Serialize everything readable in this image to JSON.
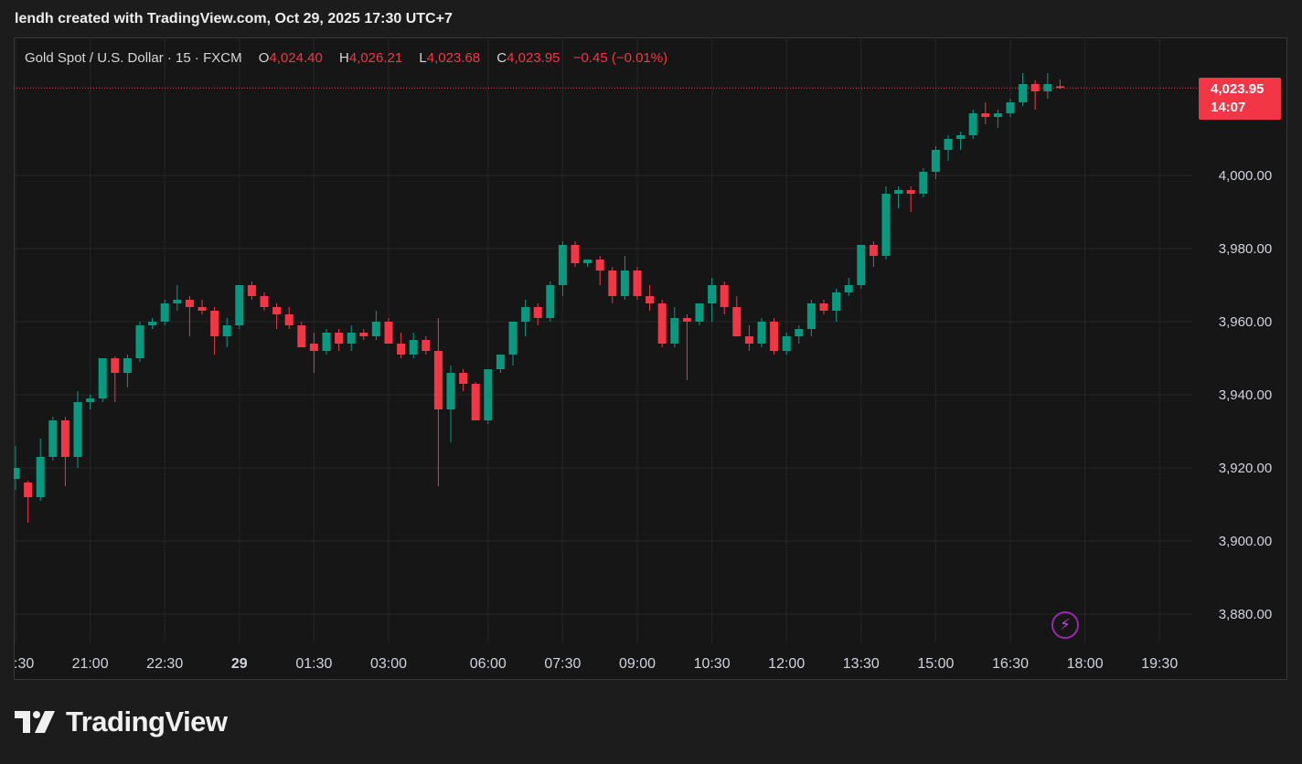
{
  "header": {
    "attribution": "lendh created with TradingView.com, Oct 29, 2025 17:30 UTC+7"
  },
  "legend": {
    "symbol": "Gold Spot / U.S. Dollar · 15 · FXCM",
    "open_label": "O",
    "open": "4,024.40",
    "high_label": "H",
    "high": "4,026.21",
    "low_label": "L",
    "low": "4,023.68",
    "close_label": "C",
    "close": "4,023.95",
    "change": "−0.45 (−0.01%)"
  },
  "price_tag": {
    "price": "4,023.95",
    "countdown": "14:07"
  },
  "brand": {
    "name": "TradingView",
    "logo_icon": "tradingview-logo-icon"
  },
  "colors": {
    "up": "#089981",
    "down": "#f23645",
    "background": "#161616",
    "grid": "#262626",
    "text": "#d1d4dc"
  },
  "chart_data": {
    "type": "candlestick",
    "interval_minutes": 15,
    "ylim": [
      3870,
      4032
    ],
    "yticks": [
      3880,
      3900,
      3920,
      3940,
      3960,
      3980,
      4000
    ],
    "ytick_labels": [
      "3,880.00",
      "3,900.00",
      "3,920.00",
      "3,940.00",
      "3,960.00",
      "3,980.00",
      "4,000.00"
    ],
    "xtick_labels": [
      ":30",
      "21:00",
      "22:30",
      "29",
      "01:30",
      "03:00",
      "06:00",
      "07:30",
      "09:00",
      "10:30",
      "12:00",
      "13:30",
      "15:00",
      "16:30",
      "18:00",
      "19:30"
    ],
    "xtick_slots": [
      0,
      6,
      12,
      18,
      24,
      30,
      38,
      44,
      50,
      56,
      62,
      68,
      74,
      80,
      86,
      92
    ],
    "last_price": 4023.95,
    "grid": true,
    "candles": [
      [
        3917.0,
        3926.0,
        3914.0,
        3920.0
      ],
      [
        3916.0,
        3916.5,
        3905.0,
        3912.0
      ],
      [
        3912.0,
        3928.0,
        3911.0,
        3923.0
      ],
      [
        3923.0,
        3934.0,
        3922.0,
        3933.0
      ],
      [
        3933.0,
        3934.0,
        3915.0,
        3923.0
      ],
      [
        3923.0,
        3941.0,
        3920.0,
        3938.0
      ],
      [
        3938.0,
        3940.0,
        3936.0,
        3939.0
      ],
      [
        3939.0,
        3950.0,
        3938.0,
        3950.0
      ],
      [
        3950.0,
        3950.5,
        3938.0,
        3946.0
      ],
      [
        3946.0,
        3951.0,
        3942.0,
        3950.0
      ],
      [
        3950.0,
        3960.0,
        3949.0,
        3959.0
      ],
      [
        3959.0,
        3961.0,
        3958.0,
        3960.0
      ],
      [
        3960.0,
        3966.0,
        3959.0,
        3965.0
      ],
      [
        3965.0,
        3970.0,
        3963.0,
        3966.0
      ],
      [
        3966.0,
        3967.0,
        3956.0,
        3964.0
      ],
      [
        3964.0,
        3966.0,
        3962.0,
        3963.0
      ],
      [
        3963.0,
        3964.0,
        3951.0,
        3956.0
      ],
      [
        3956.0,
        3961.0,
        3953.0,
        3959.0
      ],
      [
        3959.0,
        3970.0,
        3958.0,
        3970.0
      ],
      [
        3970.0,
        3971.0,
        3966.0,
        3967.0
      ],
      [
        3967.0,
        3968.0,
        3963.0,
        3964.0
      ],
      [
        3964.0,
        3965.0,
        3958.0,
        3962.0
      ],
      [
        3962.0,
        3964.0,
        3958.0,
        3959.0
      ],
      [
        3959.0,
        3960.0,
        3953.0,
        3953.0
      ],
      [
        3954.0,
        3957.0,
        3946.0,
        3952.0
      ],
      [
        3952.0,
        3958.0,
        3951.0,
        3957.0
      ],
      [
        3957.0,
        3958.0,
        3952.0,
        3954.0
      ],
      [
        3954.0,
        3959.0,
        3952.0,
        3957.0
      ],
      [
        3957.0,
        3958.0,
        3955.0,
        3956.0
      ],
      [
        3956.0,
        3963.0,
        3955.0,
        3960.0
      ],
      [
        3960.0,
        3961.0,
        3954.0,
        3954.0
      ],
      [
        3954.0,
        3957.0,
        3950.0,
        3951.0
      ],
      [
        3951.0,
        3957.0,
        3950.0,
        3955.0
      ],
      [
        3955.0,
        3956.0,
        3951.0,
        3952.0
      ],
      [
        3952.0,
        3961.0,
        3915.0,
        3936.0
      ],
      [
        3936.0,
        3948.0,
        3927.0,
        3946.0
      ],
      [
        3946.0,
        3947.0,
        3941.0,
        3943.0
      ],
      [
        3943.0,
        3943.5,
        3933.0,
        3933.0
      ],
      [
        3933.0,
        3947.0,
        3932.0,
        3947.0
      ],
      [
        3947.0,
        3951.0,
        3946.0,
        3951.0
      ],
      [
        3951.0,
        3960.0,
        3948.0,
        3960.0
      ],
      [
        3960.0,
        3966.0,
        3956.0,
        3964.0
      ],
      [
        3964.0,
        3965.0,
        3959.0,
        3961.0
      ],
      [
        3961.0,
        3971.0,
        3960.0,
        3970.0
      ],
      [
        3970.0,
        3982.0,
        3967.0,
        3981.0
      ],
      [
        3981.0,
        3982.0,
        3975.0,
        3976.0
      ],
      [
        3976.0,
        3977.0,
        3975.0,
        3977.0
      ],
      [
        3977.0,
        3978.0,
        3970.0,
        3974.0
      ],
      [
        3974.0,
        3975.0,
        3965.0,
        3967.0
      ],
      [
        3967.0,
        3978.0,
        3966.0,
        3974.0
      ],
      [
        3974.0,
        3975.0,
        3966.0,
        3967.0
      ],
      [
        3967.0,
        3970.0,
        3963.0,
        3965.0
      ],
      [
        3965.0,
        3966.0,
        3953.0,
        3954.0
      ],
      [
        3954.0,
        3964.0,
        3953.0,
        3961.0
      ],
      [
        3961.0,
        3962.0,
        3944.0,
        3960.0
      ],
      [
        3960.0,
        3965.0,
        3959.0,
        3965.0
      ],
      [
        3965.0,
        3972.0,
        3960.0,
        3970.0
      ],
      [
        3970.0,
        3971.0,
        3962.0,
        3964.0
      ],
      [
        3964.0,
        3967.0,
        3956.0,
        3956.0
      ],
      [
        3956.0,
        3959.0,
        3952.0,
        3954.0
      ],
      [
        3954.0,
        3961.0,
        3953.0,
        3960.0
      ],
      [
        3960.0,
        3961.0,
        3951.0,
        3952.0
      ],
      [
        3952.0,
        3957.0,
        3951.0,
        3956.0
      ],
      [
        3956.0,
        3959.0,
        3954.0,
        3958.0
      ],
      [
        3958.0,
        3966.0,
        3956.0,
        3965.0
      ],
      [
        3965.0,
        3966.0,
        3962.0,
        3963.0
      ],
      [
        3963.0,
        3969.0,
        3960.0,
        3968.0
      ],
      [
        3968.0,
        3972.0,
        3967.0,
        3970.0
      ],
      [
        3970.0,
        3981.0,
        3969.0,
        3981.0
      ],
      [
        3981.0,
        3982.0,
        3975.0,
        3978.0
      ],
      [
        3978.0,
        3997.0,
        3977.0,
        3995.0
      ],
      [
        3995.0,
        3997.0,
        3991.0,
        3996.0
      ],
      [
        3996.0,
        3997.0,
        3990.0,
        3995.0
      ],
      [
        3995.0,
        4002.0,
        3994.0,
        4001.0
      ],
      [
        4001.0,
        4008.0,
        3999.0,
        4007.0
      ],
      [
        4007.0,
        4011.0,
        4004.0,
        4010.0
      ],
      [
        4010.0,
        4012.0,
        4007.0,
        4011.0
      ],
      [
        4011.0,
        4018.0,
        4010.0,
        4017.0
      ],
      [
        4017.0,
        4020.0,
        4014.0,
        4016.0
      ],
      [
        4016.0,
        4018.0,
        4013.0,
        4017.0
      ],
      [
        4017.0,
        4021.0,
        4016.0,
        4020.0
      ],
      [
        4020.0,
        4028.0,
        4019.0,
        4025.0
      ],
      [
        4025.0,
        4026.0,
        4018.0,
        4023.0
      ],
      [
        4023.0,
        4028.0,
        4021.0,
        4025.0
      ],
      [
        4024.4,
        4026.21,
        4023.68,
        4023.95
      ]
    ]
  }
}
